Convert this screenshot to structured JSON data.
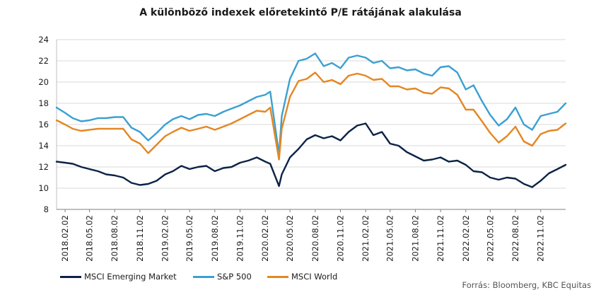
{
  "chart_data": {
    "type": "line",
    "title": "A különböző indexek  előretekintő P/E  rátájának alakulása",
    "ylim": [
      8,
      24
    ],
    "yticks": [
      "8",
      "10",
      "12",
      "14",
      "16",
      "18",
      "20",
      "22",
      "24"
    ],
    "grid": true,
    "legend_position": "bottom-left",
    "xticks": [
      "2018.02.02",
      "2018.05.02",
      "2018.08.02",
      "2018.11.02",
      "2019.02.02",
      "2019.05.02",
      "2019.08.02",
      "2019.11.02",
      "2020.02.02",
      "2020.05.02",
      "2020.08.02",
      "2020.11.02",
      "2021.02.02",
      "2021.05.02",
      "2021.08.02",
      "2021.11.02",
      "2022.02.02",
      "2022.05.02",
      "2022.08.02",
      "2022.11.02"
    ],
    "x_range": [
      "2018.01.02",
      "2023.02.01"
    ],
    "series": [
      {
        "name": "MSCI Emerging Market",
        "color": "#0c2346",
        "points": [
          [
            "2018.01.02",
            12.5
          ],
          [
            "2018.02.02",
            12.4
          ],
          [
            "2018.03.02",
            12.3
          ],
          [
            "2018.04.02",
            12.0
          ],
          [
            "2018.05.02",
            11.8
          ],
          [
            "2018.06.02",
            11.6
          ],
          [
            "2018.07.02",
            11.3
          ],
          [
            "2018.08.02",
            11.2
          ],
          [
            "2018.09.02",
            11.0
          ],
          [
            "2018.10.02",
            10.5
          ],
          [
            "2018.11.02",
            10.3
          ],
          [
            "2018.12.02",
            10.4
          ],
          [
            "2019.01.02",
            10.7
          ],
          [
            "2019.02.02",
            11.3
          ],
          [
            "2019.03.02",
            11.6
          ],
          [
            "2019.04.02",
            12.1
          ],
          [
            "2019.05.02",
            11.8
          ],
          [
            "2019.06.02",
            12.0
          ],
          [
            "2019.07.02",
            12.1
          ],
          [
            "2019.08.02",
            11.6
          ],
          [
            "2019.09.02",
            11.9
          ],
          [
            "2019.10.02",
            12.0
          ],
          [
            "2019.11.02",
            12.4
          ],
          [
            "2019.12.02",
            12.6
          ],
          [
            "2020.01.02",
            12.9
          ],
          [
            "2020.02.02",
            12.5
          ],
          [
            "2020.02.20",
            12.3
          ],
          [
            "2020.03.23",
            10.2
          ],
          [
            "2020.04.02",
            11.3
          ],
          [
            "2020.05.02",
            12.9
          ],
          [
            "2020.06.02",
            13.7
          ],
          [
            "2020.07.02",
            14.6
          ],
          [
            "2020.08.02",
            15.0
          ],
          [
            "2020.09.02",
            14.7
          ],
          [
            "2020.10.02",
            14.9
          ],
          [
            "2020.11.02",
            14.5
          ],
          [
            "2020.12.02",
            15.3
          ],
          [
            "2021.01.02",
            15.9
          ],
          [
            "2021.02.02",
            16.1
          ],
          [
            "2021.03.02",
            15.0
          ],
          [
            "2021.04.02",
            15.3
          ],
          [
            "2021.05.02",
            14.2
          ],
          [
            "2021.06.02",
            14.0
          ],
          [
            "2021.07.02",
            13.4
          ],
          [
            "2021.08.02",
            13.0
          ],
          [
            "2021.09.02",
            12.6
          ],
          [
            "2021.10.02",
            12.7
          ],
          [
            "2021.11.02",
            12.9
          ],
          [
            "2021.12.02",
            12.5
          ],
          [
            "2022.01.02",
            12.6
          ],
          [
            "2022.02.02",
            12.2
          ],
          [
            "2022.03.02",
            11.6
          ],
          [
            "2022.04.02",
            11.5
          ],
          [
            "2022.05.02",
            11.0
          ],
          [
            "2022.06.02",
            10.8
          ],
          [
            "2022.07.02",
            11.0
          ],
          [
            "2022.08.02",
            10.9
          ],
          [
            "2022.09.02",
            10.4
          ],
          [
            "2022.10.02",
            10.1
          ],
          [
            "2022.11.02",
            10.7
          ],
          [
            "2022.12.02",
            11.4
          ],
          [
            "2023.01.02",
            11.8
          ],
          [
            "2023.02.01",
            12.2
          ]
        ]
      },
      {
        "name": "S&P 500",
        "color": "#3aa0d2",
        "points": [
          [
            "2018.01.02",
            17.6
          ],
          [
            "2018.02.02",
            17.1
          ],
          [
            "2018.03.02",
            16.6
          ],
          [
            "2018.04.02",
            16.3
          ],
          [
            "2018.05.02",
            16.4
          ],
          [
            "2018.06.02",
            16.6
          ],
          [
            "2018.07.02",
            16.6
          ],
          [
            "2018.08.02",
            16.7
          ],
          [
            "2018.09.02",
            16.7
          ],
          [
            "2018.10.02",
            15.7
          ],
          [
            "2018.11.02",
            15.3
          ],
          [
            "2018.12.02",
            14.5
          ],
          [
            "2019.01.02",
            15.2
          ],
          [
            "2019.02.02",
            16.0
          ],
          [
            "2019.03.02",
            16.5
          ],
          [
            "2019.04.02",
            16.8
          ],
          [
            "2019.05.02",
            16.5
          ],
          [
            "2019.06.02",
            16.9
          ],
          [
            "2019.07.02",
            17.0
          ],
          [
            "2019.08.02",
            16.8
          ],
          [
            "2019.09.02",
            17.2
          ],
          [
            "2019.10.02",
            17.5
          ],
          [
            "2019.11.02",
            17.8
          ],
          [
            "2019.12.02",
            18.2
          ],
          [
            "2020.01.02",
            18.6
          ],
          [
            "2020.02.02",
            18.8
          ],
          [
            "2020.02.20",
            19.1
          ],
          [
            "2020.03.23",
            13.2
          ],
          [
            "2020.04.02",
            16.8
          ],
          [
            "2020.05.02",
            20.3
          ],
          [
            "2020.06.02",
            22.0
          ],
          [
            "2020.07.02",
            22.2
          ],
          [
            "2020.08.02",
            22.7
          ],
          [
            "2020.09.02",
            21.5
          ],
          [
            "2020.10.02",
            21.8
          ],
          [
            "2020.11.02",
            21.3
          ],
          [
            "2020.12.02",
            22.3
          ],
          [
            "2021.01.02",
            22.5
          ],
          [
            "2021.02.02",
            22.3
          ],
          [
            "2021.03.02",
            21.8
          ],
          [
            "2021.04.02",
            22.0
          ],
          [
            "2021.05.02",
            21.3
          ],
          [
            "2021.06.02",
            21.4
          ],
          [
            "2021.07.02",
            21.1
          ],
          [
            "2021.08.02",
            21.2
          ],
          [
            "2021.09.02",
            20.8
          ],
          [
            "2021.10.02",
            20.6
          ],
          [
            "2021.11.02",
            21.4
          ],
          [
            "2021.12.02",
            21.5
          ],
          [
            "2022.01.02",
            20.9
          ],
          [
            "2022.02.02",
            19.3
          ],
          [
            "2022.03.02",
            19.7
          ],
          [
            "2022.04.02",
            18.2
          ],
          [
            "2022.05.02",
            16.9
          ],
          [
            "2022.06.02",
            15.9
          ],
          [
            "2022.07.02",
            16.5
          ],
          [
            "2022.08.02",
            17.6
          ],
          [
            "2022.09.02",
            16.0
          ],
          [
            "2022.10.02",
            15.5
          ],
          [
            "2022.11.02",
            16.8
          ],
          [
            "2022.12.02",
            17.0
          ],
          [
            "2023.01.02",
            17.2
          ],
          [
            "2023.02.01",
            18.0
          ]
        ]
      },
      {
        "name": "MSCI World",
        "color": "#e58623",
        "points": [
          [
            "2018.01.02",
            16.4
          ],
          [
            "2018.02.02",
            16.0
          ],
          [
            "2018.03.02",
            15.6
          ],
          [
            "2018.04.02",
            15.4
          ],
          [
            "2018.05.02",
            15.5
          ],
          [
            "2018.06.02",
            15.6
          ],
          [
            "2018.07.02",
            15.6
          ],
          [
            "2018.08.02",
            15.6
          ],
          [
            "2018.09.02",
            15.6
          ],
          [
            "2018.10.02",
            14.6
          ],
          [
            "2018.11.02",
            14.2
          ],
          [
            "2018.12.02",
            13.3
          ],
          [
            "2019.01.02",
            14.1
          ],
          [
            "2019.02.02",
            14.9
          ],
          [
            "2019.03.02",
            15.3
          ],
          [
            "2019.04.02",
            15.7
          ],
          [
            "2019.05.02",
            15.4
          ],
          [
            "2019.06.02",
            15.6
          ],
          [
            "2019.07.02",
            15.8
          ],
          [
            "2019.08.02",
            15.5
          ],
          [
            "2019.09.02",
            15.8
          ],
          [
            "2019.10.02",
            16.1
          ],
          [
            "2019.11.02",
            16.5
          ],
          [
            "2019.12.02",
            16.9
          ],
          [
            "2020.01.02",
            17.3
          ],
          [
            "2020.02.02",
            17.2
          ],
          [
            "2020.02.20",
            17.6
          ],
          [
            "2020.03.23",
            12.7
          ],
          [
            "2020.04.02",
            15.6
          ],
          [
            "2020.05.02",
            18.6
          ],
          [
            "2020.06.02",
            20.1
          ],
          [
            "2020.07.02",
            20.3
          ],
          [
            "2020.08.02",
            20.9
          ],
          [
            "2020.09.02",
            20.0
          ],
          [
            "2020.10.02",
            20.2
          ],
          [
            "2020.11.02",
            19.8
          ],
          [
            "2020.12.02",
            20.6
          ],
          [
            "2021.01.02",
            20.8
          ],
          [
            "2021.02.02",
            20.6
          ],
          [
            "2021.03.02",
            20.2
          ],
          [
            "2021.04.02",
            20.3
          ],
          [
            "2021.05.02",
            19.6
          ],
          [
            "2021.06.02",
            19.6
          ],
          [
            "2021.07.02",
            19.3
          ],
          [
            "2021.08.02",
            19.4
          ],
          [
            "2021.09.02",
            19.0
          ],
          [
            "2021.10.02",
            18.9
          ],
          [
            "2021.11.02",
            19.5
          ],
          [
            "2021.12.02",
            19.4
          ],
          [
            "2022.01.02",
            18.8
          ],
          [
            "2022.02.02",
            17.4
          ],
          [
            "2022.03.02",
            17.4
          ],
          [
            "2022.04.02",
            16.3
          ],
          [
            "2022.05.02",
            15.2
          ],
          [
            "2022.06.02",
            14.3
          ],
          [
            "2022.07.02",
            14.9
          ],
          [
            "2022.08.02",
            15.8
          ],
          [
            "2022.09.02",
            14.4
          ],
          [
            "2022.10.02",
            14.0
          ],
          [
            "2022.11.02",
            15.1
          ],
          [
            "2022.12.02",
            15.4
          ],
          [
            "2023.01.02",
            15.5
          ],
          [
            "2023.02.01",
            16.1
          ]
        ]
      }
    ]
  },
  "source": "Forrás: Bloomberg,  KBC Equitas"
}
